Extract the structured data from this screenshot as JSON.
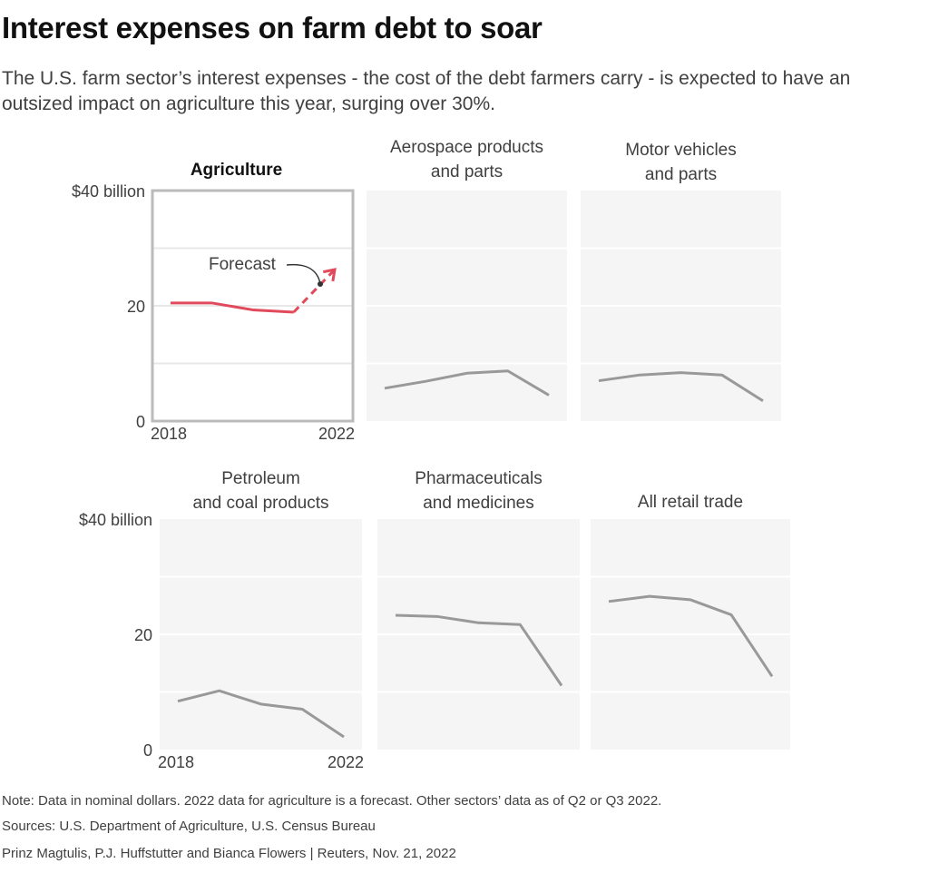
{
  "header": {
    "title": "Interest expenses on farm debt to soar",
    "subtitle": "The U.S. farm sector’s interest expenses - the cost of the debt farmers carry - is expected to have an outsized impact on agriculture this year, surging over 30%."
  },
  "footer": {
    "note": "Note: Data in nominal dollars. 2022 data for agriculture is a forecast. Other sectors’ data as of Q2 or Q3 2022.",
    "sources": "Sources: U.S. Department of Agriculture, U.S. Census Bureau",
    "credit": "Prinz Magtulis, P.J. Huffstutter and Bianca Flowers  |  Reuters, Nov. 21, 2022"
  },
  "colors": {
    "highlight": "#e04a5b",
    "series": "#999999",
    "panel_bg": "#f5f5f5",
    "frame": "#bbbbbb"
  },
  "chart_data": [
    {
      "type": "line",
      "title": "Agriculture",
      "highlight": true,
      "x": [
        2018,
        2019,
        2020,
        2021,
        2022
      ],
      "values": [
        20.5,
        20.5,
        19.3,
        18.9,
        26.3
      ],
      "forecast_from_index": 3,
      "annotation": "Forecast",
      "ylim": [
        0,
        40
      ],
      "y_ticks": [
        "$40 billion",
        "20",
        "0"
      ],
      "x_ticks": [
        "2018",
        "2022"
      ]
    },
    {
      "type": "line",
      "title": "Aerospace products and parts",
      "x": [
        2018,
        2019,
        2020,
        2021,
        2022
      ],
      "values": [
        5.7,
        6.9,
        8.3,
        8.7,
        4.5
      ],
      "ylim": [
        0,
        40
      ]
    },
    {
      "type": "line",
      "title": "Motor vehicles and parts",
      "x": [
        2018,
        2019,
        2020,
        2021,
        2022
      ],
      "values": [
        7.0,
        8.0,
        8.4,
        8.0,
        3.5
      ],
      "ylim": [
        0,
        40
      ]
    },
    {
      "type": "line",
      "title": "Petroleum and coal products",
      "x": [
        2018,
        2019,
        2020,
        2021,
        2022
      ],
      "values": [
        8.4,
        10.2,
        7.9,
        7.0,
        2.2
      ],
      "ylim": [
        0,
        40
      ],
      "y_ticks": [
        "$40 billion",
        "20",
        "0"
      ],
      "x_ticks": [
        "2018",
        "2022"
      ]
    },
    {
      "type": "line",
      "title": "Pharmaceuticals and medicines",
      "x": [
        2018,
        2019,
        2020,
        2021,
        2022
      ],
      "values": [
        23.3,
        23.1,
        22.0,
        21.7,
        11.1
      ],
      "ylim": [
        0,
        40
      ]
    },
    {
      "type": "line",
      "title": "All retail trade",
      "x": [
        2018,
        2019,
        2020,
        2021,
        2022
      ],
      "values": [
        25.7,
        26.6,
        26.0,
        23.4,
        12.7
      ],
      "ylim": [
        0,
        40
      ]
    }
  ]
}
